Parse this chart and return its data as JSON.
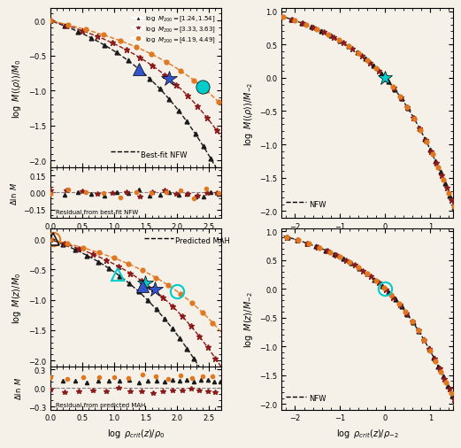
{
  "fig_size": [
    5.2,
    4.93
  ],
  "dpi": 100,
  "bg_color": "#f5f0e8",
  "col_black": "#1a1a1a",
  "col_red": "#8B1A1A",
  "col_orange": "#E07820",
  "col_cyan": "#00CCCC",
  "col_blue": "#3355CC",
  "c_black": 5.0,
  "c_red": 8.0,
  "c_orange": 13.0,
  "mah_c_black": 3.5,
  "mah_c_red": 5.5,
  "mah_c_orange": 9.0,
  "ms": 3.5,
  "ms_big": 10,
  "panel_tl": {
    "xlim": [
      0.0,
      2.7
    ],
    "ylim_main": [
      -2.1,
      0.18
    ],
    "ylim_res": [
      -0.22,
      0.22
    ],
    "yticks_main": [
      0.0,
      -0.5,
      -1.0,
      -1.5,
      -2.0
    ],
    "yticks_res": [
      0.15,
      0.0,
      -0.15
    ]
  },
  "panel_tr": {
    "xlim": [
      -2.3,
      1.5
    ],
    "ylim": [
      -2.1,
      1.05
    ],
    "xticks": [
      -2,
      -1,
      0,
      1
    ],
    "yticks": [
      1.0,
      0.5,
      0.0,
      -0.5,
      -1.0,
      -1.5,
      -2.0
    ]
  },
  "panel_bl": {
    "xlim": [
      0.0,
      2.7
    ],
    "ylim_main": [
      -2.1,
      0.18
    ],
    "ylim_res": [
      -0.35,
      0.35
    ],
    "yticks_main": [
      0.0,
      -0.5,
      -1.0,
      -1.5,
      -2.0
    ],
    "yticks_res": [
      0.3,
      0.0,
      -0.3
    ]
  },
  "panel_br": {
    "xlim": [
      -2.3,
      1.5
    ],
    "ylim": [
      -2.1,
      1.05
    ],
    "xticks": [
      -2,
      -1,
      0,
      1
    ],
    "yticks": [
      1.0,
      0.5,
      0.0,
      -0.5,
      -1.0,
      -1.5,
      -2.0
    ]
  }
}
